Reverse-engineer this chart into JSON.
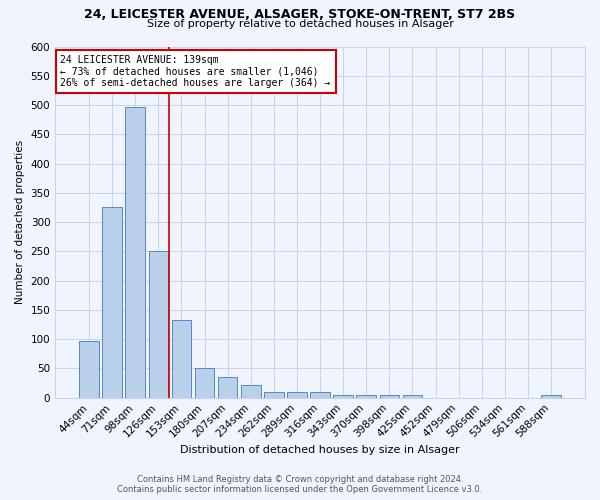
{
  "title_line1": "24, LEICESTER AVENUE, ALSAGER, STOKE-ON-TRENT, ST7 2BS",
  "title_line2": "Size of property relative to detached houses in Alsager",
  "xlabel": "Distribution of detached houses by size in Alsager",
  "ylabel": "Number of detached properties",
  "categories": [
    "44sqm",
    "71sqm",
    "98sqm",
    "126sqm",
    "153sqm",
    "180sqm",
    "207sqm",
    "234sqm",
    "262sqm",
    "289sqm",
    "316sqm",
    "343sqm",
    "370sqm",
    "398sqm",
    "425sqm",
    "452sqm",
    "479sqm",
    "506sqm",
    "534sqm",
    "561sqm",
    "588sqm"
  ],
  "values": [
    97,
    325,
    497,
    250,
    133,
    51,
    36,
    22,
    10,
    10,
    10,
    5,
    5,
    5,
    5,
    0,
    0,
    0,
    0,
    0,
    5
  ],
  "bar_color": "#b8d0ea",
  "bar_edge_color": "#5588c8",
  "grid_color": "#c8d4e8",
  "vline_pos": 3.45,
  "vline_color": "#cc0000",
  "annotation_line1": "24 LEICESTER AVENUE: 139sqm",
  "annotation_line2": "← 73% of detached houses are smaller (1,046)",
  "annotation_line3": "26% of semi-detached houses are larger (364) →",
  "annotation_box_fc": "#ffffff",
  "annotation_box_ec": "#cc0000",
  "ylim": [
    0,
    600
  ],
  "yticks": [
    0,
    50,
    100,
    150,
    200,
    250,
    300,
    350,
    400,
    450,
    500,
    550,
    600
  ],
  "footer_line1": "Contains HM Land Registry data © Crown copyright and database right 2024.",
  "footer_line2": "Contains public sector information licensed under the Open Government Licence v3.0.",
  "bg_color": "#f0f4ff"
}
